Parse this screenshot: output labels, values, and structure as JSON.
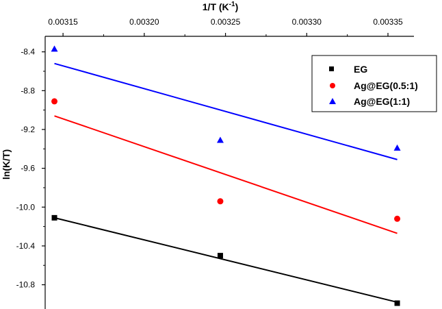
{
  "chart_data": {
    "type": "scatter",
    "title": "",
    "xlabel": "1/T (K",
    "xlabel_superscript": "-1",
    "xlabel_suffix": ")",
    "ylabel": "ln(K/T)",
    "x_ticks": [
      "0.00315",
      "0.00320",
      "0.00325",
      "0.00330",
      "0.00335"
    ],
    "x_tick_values": [
      0.00315,
      0.0032,
      0.00325,
      0.0033,
      0.00335
    ],
    "y_ticks": [
      "-8.4",
      "-8.8",
      "-9.2",
      "-9.6",
      "-10.0",
      "-10.4",
      "-10.8"
    ],
    "y_tick_values": [
      -8.4,
      -8.8,
      -9.2,
      -9.6,
      -10.0,
      -10.4,
      -10.8
    ],
    "xlim": [
      0.003139,
      0.003366
    ],
    "ylim": [
      -11.05,
      -8.24
    ],
    "x_axis_position": "top",
    "grid": false,
    "legend_position": "top-right",
    "series": [
      {
        "name": "EG",
        "marker": "square",
        "color": "#000000",
        "x": [
          0.0031447,
          0.0032468,
          0.0033557
        ],
        "y": [
          -10.11,
          -10.5,
          -10.99
        ],
        "fit": {
          "x": [
            0.0031447,
            0.0033557
          ],
          "y": [
            -10.11,
            -10.98
          ]
        }
      },
      {
        "name": "Ag@EG(0.5:1)",
        "marker": "circle",
        "color": "#ff0000",
        "x": [
          0.0031447,
          0.0032468,
          0.0033557
        ],
        "y": [
          -8.91,
          -9.94,
          -10.12
        ],
        "fit": {
          "x": [
            0.0031447,
            0.0033557
          ],
          "y": [
            -9.06,
            -10.27
          ]
        }
      },
      {
        "name": "Ag@EG(1:1)",
        "marker": "triangle",
        "color": "#0000ff",
        "x": [
          0.0031447,
          0.0032468,
          0.0033557
        ],
        "y": [
          -8.37,
          -9.31,
          -9.39
        ],
        "fit": {
          "x": [
            0.0031447,
            0.0033557
          ],
          "y": [
            -8.52,
            -9.51
          ]
        }
      }
    ]
  }
}
